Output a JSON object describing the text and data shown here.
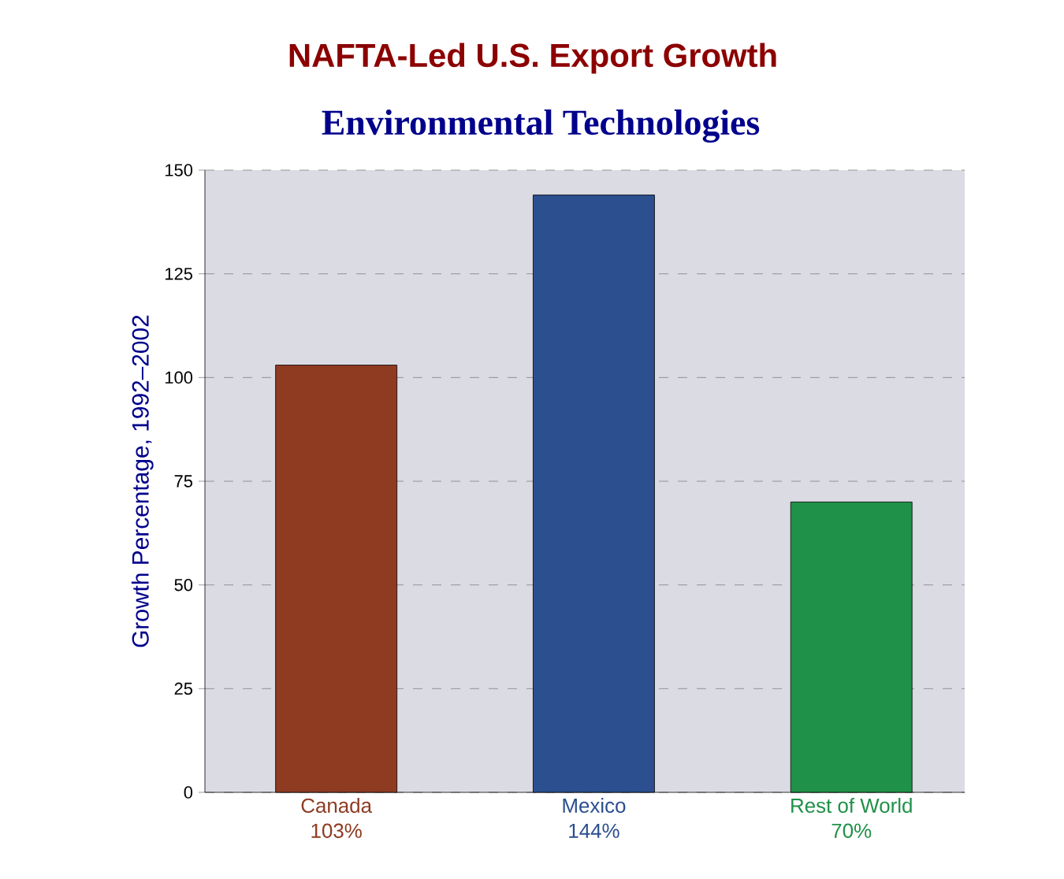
{
  "chart_data": {
    "type": "bar",
    "title": "NAFTA-Led U.S. Export Growth",
    "subtitle": "Environmental Technologies",
    "ylabel": "Growth Percentage, 1992–2002",
    "categories": [
      "Canada",
      "Mexico",
      "Rest of World"
    ],
    "values": [
      103,
      144,
      70
    ],
    "value_labels": [
      "103%",
      "144%",
      "70%"
    ],
    "colors": [
      "#8e3b22",
      "#2b4f8f",
      "#1f9148"
    ],
    "ylim": [
      0,
      150
    ],
    "yticks": [
      0,
      25,
      50,
      75,
      100,
      125,
      150
    ],
    "grid": "y"
  }
}
